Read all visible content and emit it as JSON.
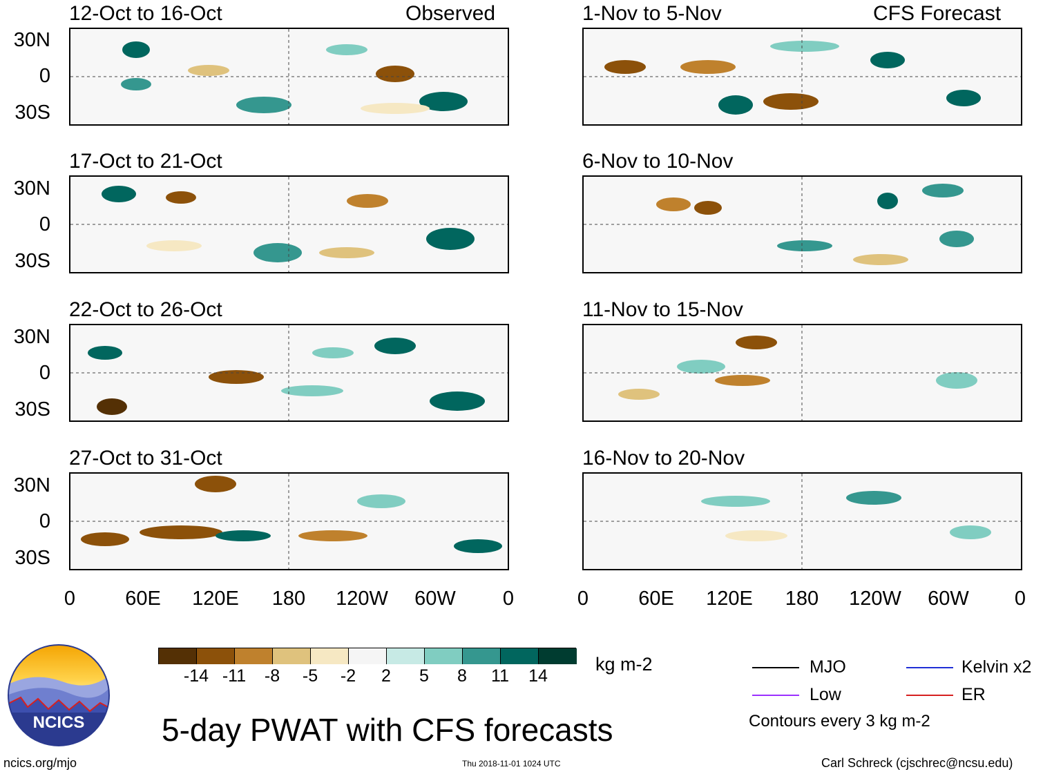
{
  "header": {
    "observed_label": "Observed",
    "forecast_label": "CFS Forecast"
  },
  "panels": {
    "observed": [
      {
        "title": "12-Oct to 16-Oct"
      },
      {
        "title": "17-Oct to 21-Oct"
      },
      {
        "title": "22-Oct to 26-Oct"
      },
      {
        "title": "27-Oct to 31-Oct"
      }
    ],
    "forecast": [
      {
        "title": "1-Nov to 5-Nov"
      },
      {
        "title": "6-Nov to 10-Nov"
      },
      {
        "title": "11-Nov to 15-Nov"
      },
      {
        "title": "16-Nov to 20-Nov"
      }
    ]
  },
  "axes": {
    "lat_labels": [
      "30N",
      "0",
      "30S"
    ],
    "lon_labels": [
      "0",
      "60E",
      "120E",
      "180",
      "120W",
      "60W",
      "0"
    ]
  },
  "colorbar": {
    "ticks": [
      "-14",
      "-11",
      "-8",
      "-5",
      "-2",
      "2",
      "5",
      "8",
      "11",
      "14"
    ],
    "units": "kg m-2",
    "colors": [
      "#543005",
      "#8c510a",
      "#bf812d",
      "#dfc27d",
      "#f6e8c3",
      "#f5f5f5",
      "#c7eae5",
      "#80cdc1",
      "#35978f",
      "#01665e",
      "#003c30"
    ]
  },
  "legend": {
    "mjo": "MJO",
    "kelvin": "Kelvin x2",
    "low": "Low",
    "er": "ER",
    "contours_note": "Contours every 3 kg m-2",
    "colors": {
      "mjo": "#000000",
      "kelvin": "#1f2fd6",
      "low": "#9b30ff",
      "er": "#d62020"
    }
  },
  "footer": {
    "title": "5-day PWAT with CFS forecasts",
    "logo_text": "NCICS",
    "url": "ncics.org/mjo",
    "timestamp": "Thu 2018-11-01 1024 UTC",
    "author": "Carl Schreck (cjschrec@ncsu.edu)"
  }
}
